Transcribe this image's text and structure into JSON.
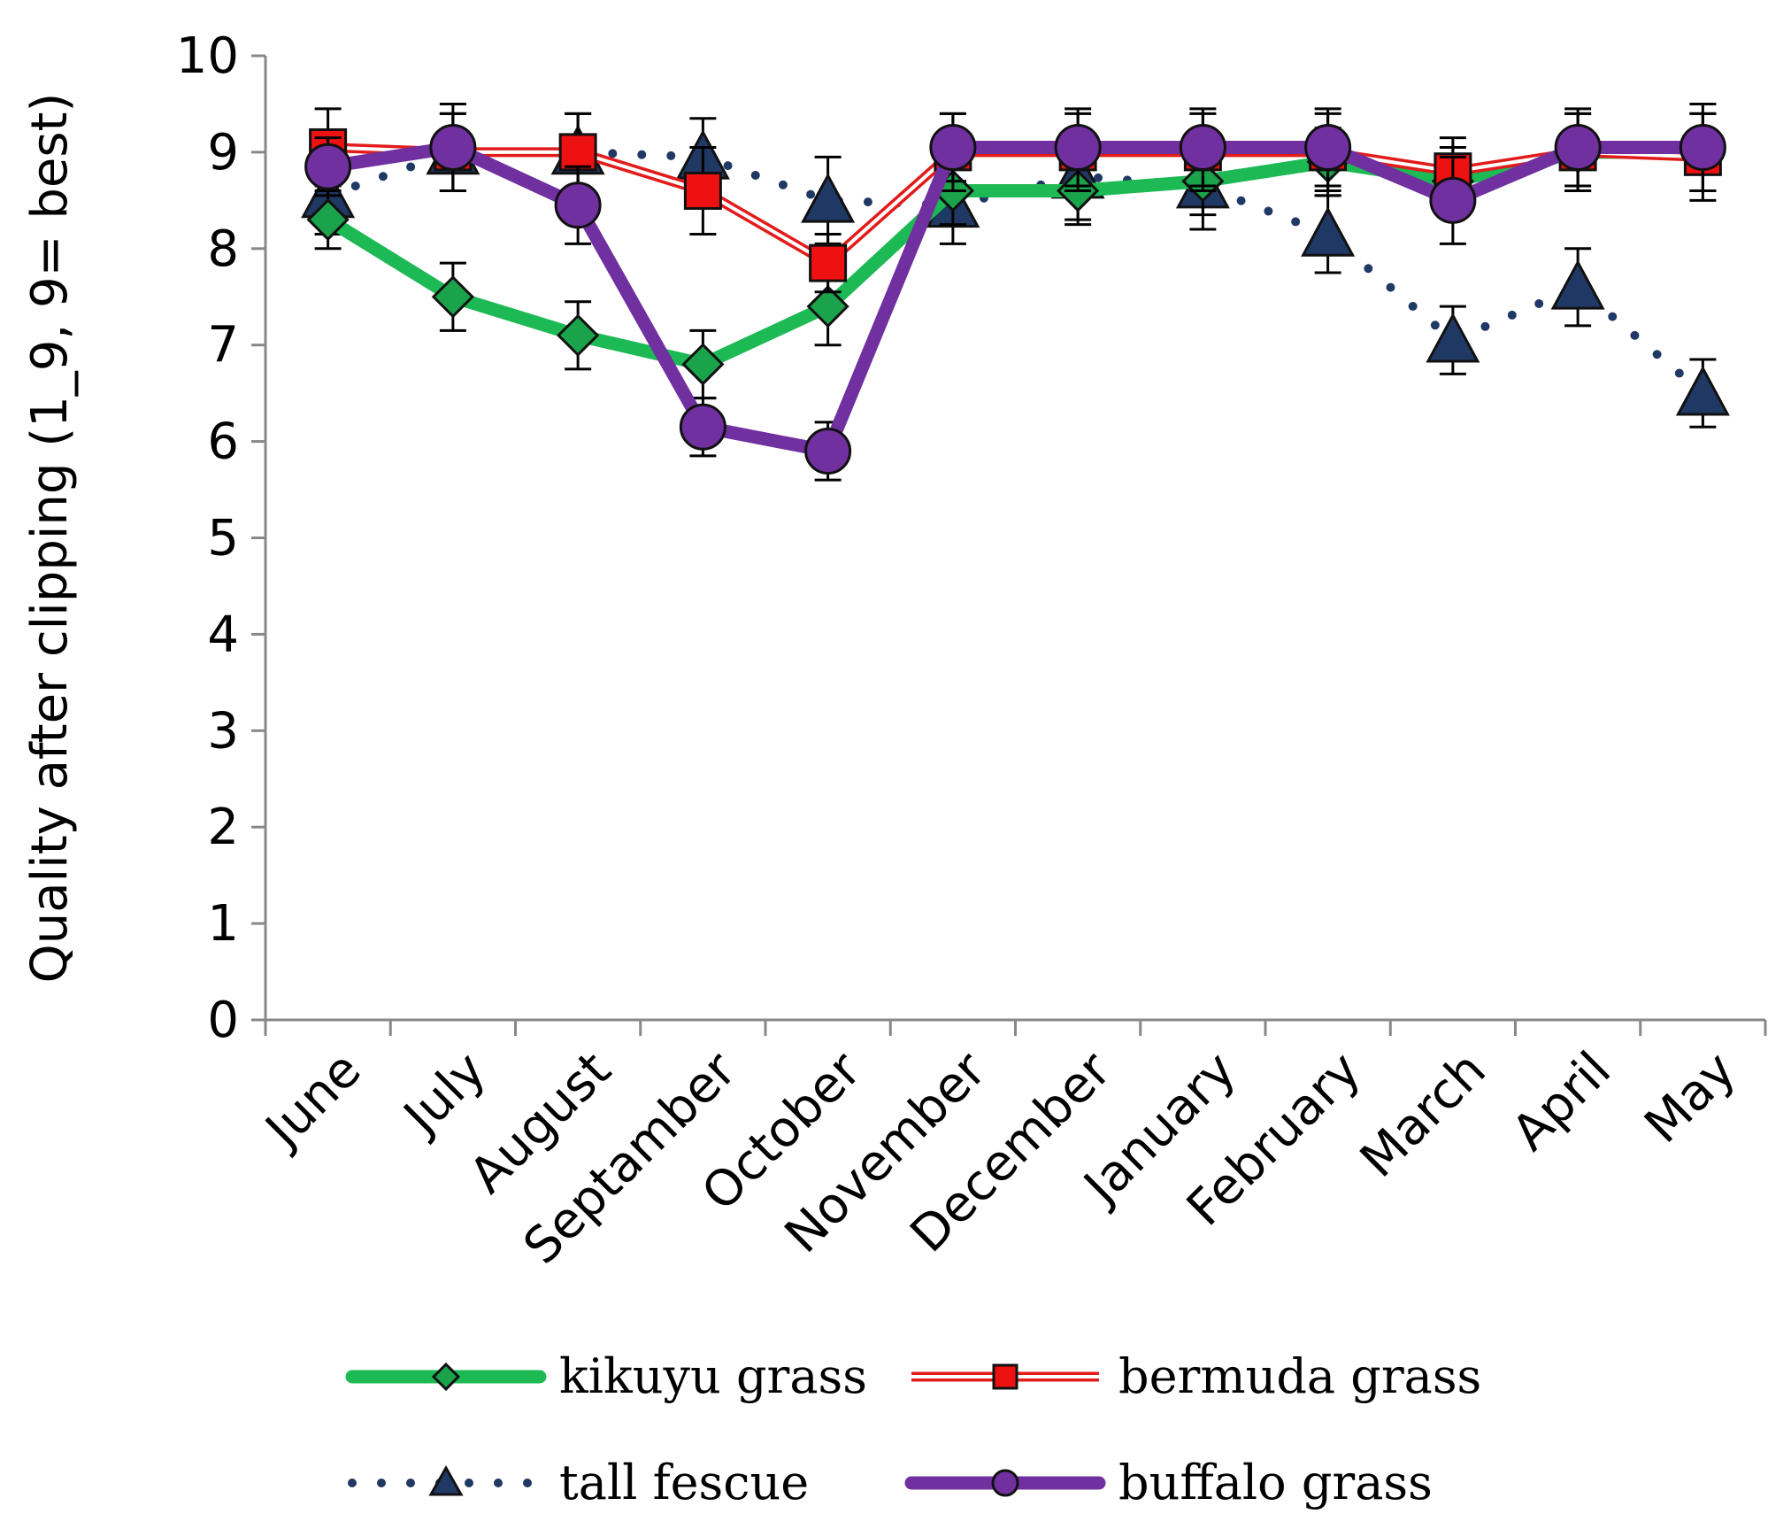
{
  "chart_data": {
    "type": "line",
    "title": "",
    "xlabel": "",
    "ylabel": "Quality after clipping (1_9, 9= best)",
    "ylim": [
      0,
      10
    ],
    "yticks": [
      0,
      1,
      2,
      3,
      4,
      5,
      6,
      7,
      8,
      9,
      10
    ],
    "categories": [
      "June",
      "July",
      "August",
      "Septamber",
      "October",
      "November",
      "December",
      "January",
      "February",
      "March",
      "April",
      "May"
    ],
    "series": [
      {
        "name": "kikuyu grass",
        "style": "thick",
        "marker": "diamond",
        "color": "#1db954",
        "marker_fill": "#1aa34a",
        "values": [
          8.3,
          7.5,
          7.1,
          6.8,
          7.4,
          8.6,
          8.6,
          8.7,
          8.9,
          8.7,
          9.0,
          9.0
        ],
        "errors": [
          0.3,
          0.35,
          0.35,
          0.35,
          0.4,
          0.35,
          0.35,
          0.35,
          0.35,
          0.35,
          0.4,
          0.4
        ]
      },
      {
        "name": "bermuda grass",
        "style": "double",
        "marker": "square",
        "color": "#e21b1b",
        "marker_fill": "#ee1111",
        "values": [
          9.05,
          9.0,
          9.0,
          8.6,
          7.85,
          9.0,
          9.0,
          9.0,
          9.0,
          8.8,
          9.0,
          8.95
        ],
        "errors": [
          0.4,
          0.4,
          0.4,
          0.45,
          0.3,
          0.4,
          0.4,
          0.4,
          0.4,
          0.35,
          0.4,
          0.45
        ]
      },
      {
        "name": "tall fescue",
        "style": "dotted",
        "marker": "triangle",
        "color": "#203864",
        "marker_fill": "#203864",
        "values": [
          8.55,
          9.0,
          9.0,
          8.95,
          8.5,
          8.45,
          8.75,
          8.65,
          8.15,
          7.05,
          7.6,
          6.5
        ],
        "errors": [
          0.4,
          0.4,
          0.4,
          0.4,
          0.45,
          0.4,
          0.45,
          0.45,
          0.4,
          0.35,
          0.4,
          0.35
        ]
      },
      {
        "name": "buffalo grass",
        "style": "thick",
        "marker": "circle",
        "color": "#7030a0",
        "marker_fill": "#7030a0",
        "values": [
          8.85,
          9.05,
          8.45,
          6.15,
          5.9,
          9.05,
          9.05,
          9.05,
          9.05,
          8.5,
          9.05,
          9.05
        ],
        "errors": [
          0.3,
          0.45,
          0.4,
          0.3,
          0.3,
          0.35,
          0.4,
          0.4,
          0.4,
          0.45,
          0.4,
          0.45
        ]
      }
    ],
    "legend_position": "bottom",
    "grid": false
  }
}
